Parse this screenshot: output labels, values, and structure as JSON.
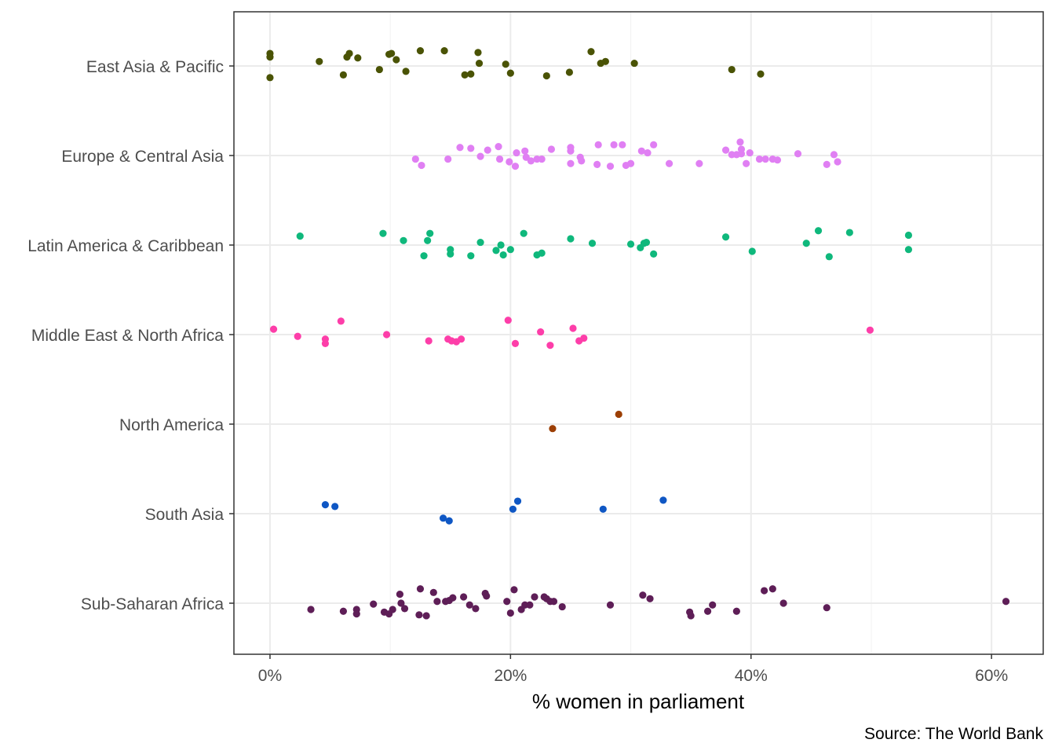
{
  "chart_data": {
    "type": "scatter",
    "xlabel": "% women in parliament",
    "ylabel": "",
    "caption": "Source: The World Bank",
    "xlim": [
      -3,
      64.3
    ],
    "x_ticks": [
      0,
      20,
      40,
      60
    ],
    "x_tick_labels": [
      "0%",
      "20%",
      "40%",
      "60%"
    ],
    "grid": true,
    "legend": "none",
    "categories": [
      "East Asia & Pacific",
      "Europe & Central Asia",
      "Latin America & Caribbean",
      "Middle East & North Africa",
      "North America",
      "South Asia",
      "Sub-Saharan Africa"
    ],
    "series": [
      {
        "category": "East Asia & Pacific",
        "color": "#4a5305",
        "points": [
          {
            "x": 0.0,
            "y": 0.14
          },
          {
            "x": 0.0,
            "y": 0.1
          },
          {
            "x": 0.0,
            "y": -0.13
          },
          {
            "x": 4.1,
            "y": 0.05
          },
          {
            "x": 6.1,
            "y": -0.1
          },
          {
            "x": 6.4,
            "y": 0.1
          },
          {
            "x": 6.6,
            "y": 0.14
          },
          {
            "x": 7.3,
            "y": 0.09
          },
          {
            "x": 9.1,
            "y": -0.04
          },
          {
            "x": 9.9,
            "y": 0.13
          },
          {
            "x": 10.1,
            "y": 0.14
          },
          {
            "x": 10.5,
            "y": 0.07
          },
          {
            "x": 11.3,
            "y": -0.06
          },
          {
            "x": 12.5,
            "y": 0.17
          },
          {
            "x": 14.5,
            "y": 0.17
          },
          {
            "x": 16.2,
            "y": -0.1
          },
          {
            "x": 16.7,
            "y": -0.09
          },
          {
            "x": 17.3,
            "y": 0.15
          },
          {
            "x": 17.4,
            "y": 0.03
          },
          {
            "x": 19.6,
            "y": 0.02
          },
          {
            "x": 20.0,
            "y": -0.08
          },
          {
            "x": 23.0,
            "y": -0.11
          },
          {
            "x": 24.9,
            "y": -0.07
          },
          {
            "x": 26.7,
            "y": 0.16
          },
          {
            "x": 27.5,
            "y": 0.03
          },
          {
            "x": 27.9,
            "y": 0.05
          },
          {
            "x": 30.3,
            "y": 0.03
          },
          {
            "x": 38.4,
            "y": -0.04
          },
          {
            "x": 40.8,
            "y": -0.09
          }
        ]
      },
      {
        "category": "Europe & Central Asia",
        "color": "#e07ff3",
        "points": [
          {
            "x": 12.1,
            "y": -0.04
          },
          {
            "x": 12.6,
            "y": -0.11
          },
          {
            "x": 14.8,
            "y": -0.04
          },
          {
            "x": 15.8,
            "y": 0.09
          },
          {
            "x": 16.7,
            "y": 0.08
          },
          {
            "x": 17.5,
            "y": -0.01
          },
          {
            "x": 18.1,
            "y": 0.06
          },
          {
            "x": 19.0,
            "y": 0.1
          },
          {
            "x": 19.1,
            "y": -0.04
          },
          {
            "x": 19.9,
            "y": -0.07
          },
          {
            "x": 20.4,
            "y": -0.12
          },
          {
            "x": 20.5,
            "y": 0.03
          },
          {
            "x": 21.2,
            "y": 0.05
          },
          {
            "x": 21.3,
            "y": -0.02
          },
          {
            "x": 21.7,
            "y": -0.06
          },
          {
            "x": 22.2,
            "y": -0.04
          },
          {
            "x": 22.6,
            "y": -0.04
          },
          {
            "x": 23.4,
            "y": 0.07
          },
          {
            "x": 25.0,
            "y": 0.09
          },
          {
            "x": 25.0,
            "y": 0.05
          },
          {
            "x": 25.0,
            "y": -0.09
          },
          {
            "x": 25.8,
            "y": -0.02
          },
          {
            "x": 25.9,
            "y": -0.06
          },
          {
            "x": 27.2,
            "y": -0.1
          },
          {
            "x": 27.3,
            "y": 0.12
          },
          {
            "x": 28.3,
            "y": -0.12
          },
          {
            "x": 28.6,
            "y": 0.12
          },
          {
            "x": 29.3,
            "y": 0.12
          },
          {
            "x": 29.6,
            "y": -0.11
          },
          {
            "x": 30.0,
            "y": -0.09
          },
          {
            "x": 30.9,
            "y": 0.05
          },
          {
            "x": 31.4,
            "y": 0.03
          },
          {
            "x": 31.9,
            "y": 0.12
          },
          {
            "x": 33.2,
            "y": -0.09
          },
          {
            "x": 35.7,
            "y": -0.09
          },
          {
            "x": 37.9,
            "y": 0.06
          },
          {
            "x": 38.4,
            "y": 0.01
          },
          {
            "x": 38.8,
            "y": 0.01
          },
          {
            "x": 39.1,
            "y": 0.15
          },
          {
            "x": 39.2,
            "y": 0.02
          },
          {
            "x": 39.2,
            "y": 0.07
          },
          {
            "x": 39.6,
            "y": -0.09
          },
          {
            "x": 39.9,
            "y": 0.03
          },
          {
            "x": 40.7,
            "y": -0.04
          },
          {
            "x": 41.2,
            "y": -0.04
          },
          {
            "x": 41.8,
            "y": -0.04
          },
          {
            "x": 42.2,
            "y": -0.05
          },
          {
            "x": 43.9,
            "y": 0.02
          },
          {
            "x": 46.3,
            "y": -0.1
          },
          {
            "x": 46.9,
            "y": 0.01
          },
          {
            "x": 47.2,
            "y": -0.07
          }
        ]
      },
      {
        "category": "Latin America & Caribbean",
        "color": "#0fb87c",
        "points": [
          {
            "x": 2.5,
            "y": 0.1
          },
          {
            "x": 9.4,
            "y": 0.13
          },
          {
            "x": 11.1,
            "y": 0.05
          },
          {
            "x": 12.8,
            "y": -0.12
          },
          {
            "x": 13.1,
            "y": 0.05
          },
          {
            "x": 13.3,
            "y": 0.13
          },
          {
            "x": 15.0,
            "y": -0.05
          },
          {
            "x": 15.0,
            "y": -0.1
          },
          {
            "x": 16.7,
            "y": -0.12
          },
          {
            "x": 17.5,
            "y": 0.03
          },
          {
            "x": 18.8,
            "y": -0.06
          },
          {
            "x": 19.2,
            "y": 0.0
          },
          {
            "x": 19.4,
            "y": -0.11
          },
          {
            "x": 20.0,
            "y": -0.05
          },
          {
            "x": 21.1,
            "y": 0.13
          },
          {
            "x": 22.2,
            "y": -0.11
          },
          {
            "x": 22.6,
            "y": -0.09
          },
          {
            "x": 25.0,
            "y": 0.07
          },
          {
            "x": 26.8,
            "y": 0.02
          },
          {
            "x": 30.0,
            "y": 0.01
          },
          {
            "x": 30.8,
            "y": -0.03
          },
          {
            "x": 31.1,
            "y": 0.02
          },
          {
            "x": 31.3,
            "y": 0.03
          },
          {
            "x": 31.9,
            "y": -0.1
          },
          {
            "x": 37.9,
            "y": 0.09
          },
          {
            "x": 40.1,
            "y": -0.07
          },
          {
            "x": 44.6,
            "y": 0.02
          },
          {
            "x": 45.6,
            "y": 0.16
          },
          {
            "x": 46.5,
            "y": -0.13
          },
          {
            "x": 48.2,
            "y": 0.14
          },
          {
            "x": 53.1,
            "y": 0.11
          },
          {
            "x": 53.1,
            "y": -0.05
          }
        ]
      },
      {
        "category": "Middle East & North Africa",
        "color": "#fd3ea9",
        "points": [
          {
            "x": 0.3,
            "y": 0.06
          },
          {
            "x": 2.3,
            "y": -0.02
          },
          {
            "x": 4.6,
            "y": -0.05
          },
          {
            "x": 4.6,
            "y": -0.1
          },
          {
            "x": 5.9,
            "y": 0.15
          },
          {
            "x": 9.7,
            "y": 0.0
          },
          {
            "x": 13.2,
            "y": -0.07
          },
          {
            "x": 14.8,
            "y": -0.05
          },
          {
            "x": 15.1,
            "y": -0.07
          },
          {
            "x": 15.5,
            "y": -0.08
          },
          {
            "x": 15.9,
            "y": -0.05
          },
          {
            "x": 19.8,
            "y": 0.16
          },
          {
            "x": 20.4,
            "y": -0.1
          },
          {
            "x": 22.5,
            "y": 0.03
          },
          {
            "x": 23.3,
            "y": -0.12
          },
          {
            "x": 25.2,
            "y": 0.07
          },
          {
            "x": 25.7,
            "y": -0.07
          },
          {
            "x": 26.1,
            "y": -0.04
          },
          {
            "x": 49.9,
            "y": 0.05
          }
        ]
      },
      {
        "category": "North America",
        "color": "#9c3f04",
        "points": [
          {
            "x": 23.5,
            "y": -0.05
          },
          {
            "x": 29.0,
            "y": 0.11
          }
        ]
      },
      {
        "category": "South Asia",
        "color": "#0f57c4",
        "points": [
          {
            "x": 4.6,
            "y": 0.1
          },
          {
            "x": 5.4,
            "y": 0.08
          },
          {
            "x": 14.4,
            "y": -0.05
          },
          {
            "x": 14.9,
            "y": -0.08
          },
          {
            "x": 20.2,
            "y": 0.05
          },
          {
            "x": 20.6,
            "y": 0.14
          },
          {
            "x": 27.7,
            "y": 0.05
          },
          {
            "x": 32.7,
            "y": 0.15
          }
        ]
      },
      {
        "category": "Sub-Saharan Africa",
        "color": "#5e1e57",
        "points": [
          {
            "x": 3.4,
            "y": -0.07
          },
          {
            "x": 6.1,
            "y": -0.09
          },
          {
            "x": 7.2,
            "y": -0.07
          },
          {
            "x": 7.2,
            "y": -0.12
          },
          {
            "x": 8.6,
            "y": -0.01
          },
          {
            "x": 9.5,
            "y": -0.1
          },
          {
            "x": 9.9,
            "y": -0.12
          },
          {
            "x": 10.2,
            "y": -0.07
          },
          {
            "x": 10.8,
            "y": 0.1
          },
          {
            "x": 10.9,
            "y": 0.0
          },
          {
            "x": 11.2,
            "y": -0.06
          },
          {
            "x": 12.4,
            "y": -0.13
          },
          {
            "x": 12.5,
            "y": 0.16
          },
          {
            "x": 13.0,
            "y": -0.14
          },
          {
            "x": 13.6,
            "y": 0.12
          },
          {
            "x": 13.9,
            "y": 0.02
          },
          {
            "x": 14.6,
            "y": 0.02
          },
          {
            "x": 14.9,
            "y": 0.03
          },
          {
            "x": 15.2,
            "y": 0.06
          },
          {
            "x": 16.1,
            "y": 0.07
          },
          {
            "x": 16.6,
            "y": -0.02
          },
          {
            "x": 17.1,
            "y": -0.06
          },
          {
            "x": 17.9,
            "y": 0.11
          },
          {
            "x": 18.0,
            "y": 0.08
          },
          {
            "x": 19.7,
            "y": 0.02
          },
          {
            "x": 20.0,
            "y": -0.11
          },
          {
            "x": 20.3,
            "y": 0.15
          },
          {
            "x": 20.9,
            "y": -0.07
          },
          {
            "x": 21.2,
            "y": -0.02
          },
          {
            "x": 21.6,
            "y": -0.02
          },
          {
            "x": 22.0,
            "y": 0.07
          },
          {
            "x": 22.8,
            "y": 0.07
          },
          {
            "x": 23.0,
            "y": 0.05
          },
          {
            "x": 23.3,
            "y": 0.02
          },
          {
            "x": 23.6,
            "y": 0.02
          },
          {
            "x": 24.3,
            "y": -0.04
          },
          {
            "x": 28.3,
            "y": -0.02
          },
          {
            "x": 31.0,
            "y": 0.09
          },
          {
            "x": 31.6,
            "y": 0.05
          },
          {
            "x": 34.9,
            "y": -0.1
          },
          {
            "x": 35.0,
            "y": -0.14
          },
          {
            "x": 36.4,
            "y": -0.09
          },
          {
            "x": 36.8,
            "y": -0.02
          },
          {
            "x": 38.8,
            "y": -0.09
          },
          {
            "x": 41.1,
            "y": 0.14
          },
          {
            "x": 41.8,
            "y": 0.16
          },
          {
            "x": 42.7,
            "y": 0.0
          },
          {
            "x": 46.3,
            "y": -0.05
          },
          {
            "x": 61.2,
            "y": 0.02
          }
        ]
      }
    ]
  }
}
